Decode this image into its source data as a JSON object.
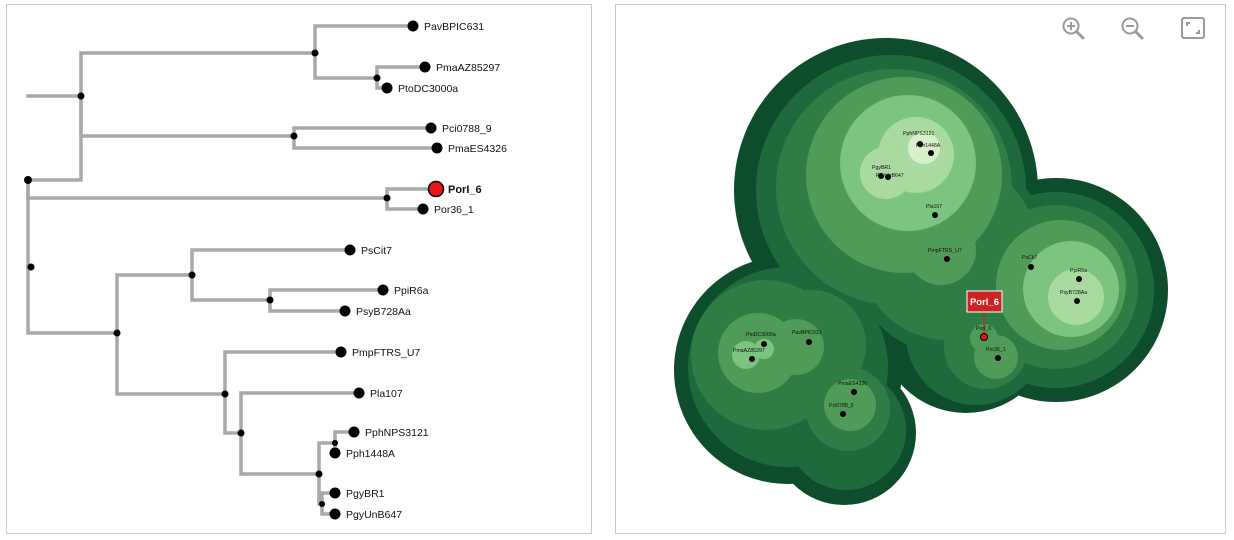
{
  "tree": {
    "selected_leaf": "PorI_6",
    "leaves": [
      "PavBPIC631",
      "PmaAZ85297",
      "PtoDC3000a",
      "Pci0788_9",
      "PmaES4326",
      "PorI_6",
      "Por36_1",
      "PsCit7",
      "PpiR6a",
      "PsyB728Aa",
      "PmpFTRS_U7",
      "Pla107",
      "PphNPS3121",
      "Pph1448A",
      "PgyBR1",
      "PgyUnB647"
    ]
  },
  "map": {
    "selected_label": "PorI_6",
    "points": [
      "PphNPS3121",
      "Pph1448A",
      "PgyBR1",
      "PgyUnB647",
      "Pla107",
      "PmpFTRS_U7",
      "PsCit7",
      "PpiR6a",
      "PsyB728Aa",
      "PtoDC3000a",
      "PavBPIC631",
      "PmaAZ85297",
      "PmaES4326",
      "Pci0788_9",
      "PorI_6",
      "Por36_1"
    ],
    "colors": {
      "level0": "#0e4d2c",
      "level1": "#1e6a3c",
      "level2": "#2f7d45",
      "level3": "#509b58",
      "level4": "#7cc47f",
      "level5": "#a9dba0",
      "level6": "#d6f0c8",
      "selected": "#cc2222"
    }
  },
  "toolbar": {
    "zoom_in_icon": "zoom-in-icon",
    "zoom_out_icon": "zoom-out-icon",
    "fit_icon": "fit-screen-icon"
  }
}
